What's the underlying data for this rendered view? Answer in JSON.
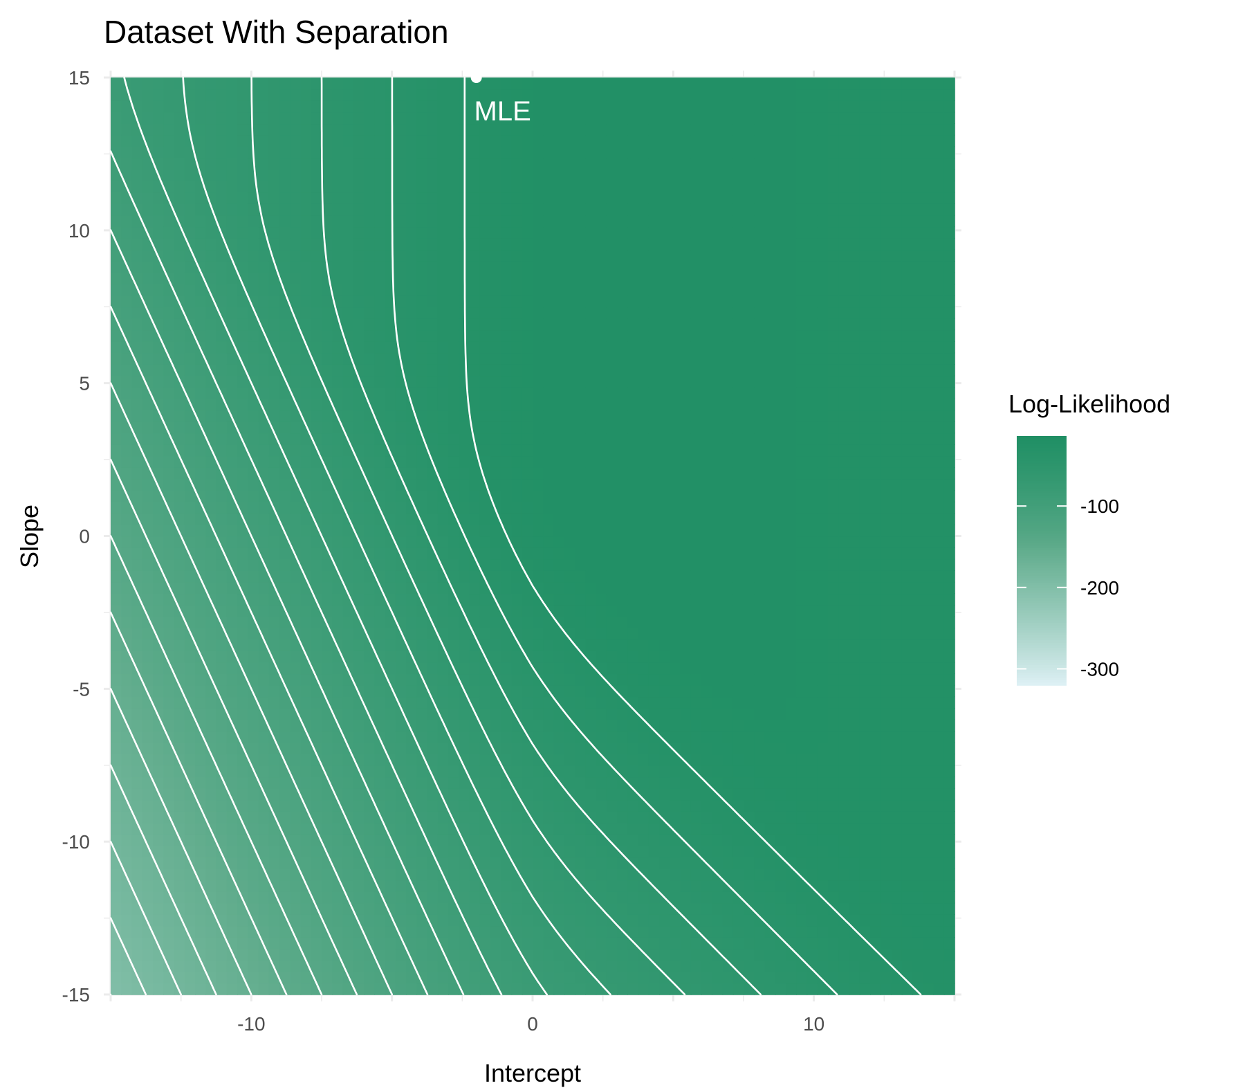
{
  "chart_data": {
    "type": "heatmap",
    "title": "Dataset With Separation",
    "xlabel": "Intercept",
    "ylabel": "Slope",
    "xlim": [
      -15,
      15
    ],
    "ylim": [
      -15,
      15
    ],
    "x_ticks": [
      -10,
      0,
      10
    ],
    "y_ticks": [
      -15,
      -10,
      -5,
      0,
      5,
      10,
      15
    ],
    "grid": true,
    "legend": {
      "title": "Log-Likelihood",
      "position": "right",
      "range": [
        -320,
        -14
      ],
      "ticks": [
        -100,
        -200,
        -300
      ],
      "color_high": "#1f8f64",
      "color_low": "#dff1f6"
    },
    "annotation": {
      "label": "MLE",
      "x": -2,
      "y": 15
    },
    "contour_levels": [
      -20,
      -30,
      -40,
      -50,
      -60,
      -70,
      -80,
      -90,
      -100,
      -110,
      -120,
      -130,
      -140,
      -150,
      -160,
      -170,
      -180,
      -190,
      -200,
      -210,
      -220,
      -230,
      -240,
      -250,
      -260,
      -270,
      -280,
      -290,
      -300,
      -310
    ],
    "contour_color": "#ffffff",
    "panel_background": "#ffffff",
    "grid_color": "#ebebeb"
  }
}
